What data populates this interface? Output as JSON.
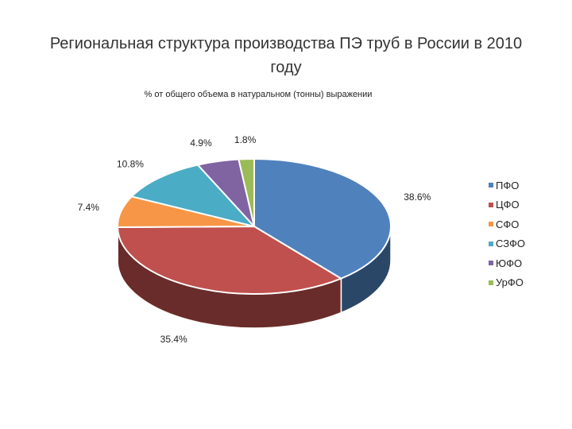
{
  "chart_data": {
    "type": "pie",
    "title": "Региональная структура производства ПЭ труб в России в 2010 году",
    "subtitle": "% от общего объема в натуральном (тонны) выражении",
    "categories": [
      "ПФО",
      "ЦФО",
      "СФО",
      "СЗФО",
      "ЮФО",
      "УрФО"
    ],
    "values": [
      38.6,
      35.4,
      7.4,
      10.8,
      4.9,
      1.8
    ],
    "data_labels": [
      "38.6%",
      "35.4%",
      "7.4%",
      "10.8%",
      "4.9%",
      "1.8%"
    ],
    "colors": [
      "#4F81BD",
      "#C0504D",
      "#F79646",
      "#4BACC6",
      "#8064A2",
      "#9BBB59"
    ],
    "style": "3d-pie",
    "legend_position": "right"
  }
}
